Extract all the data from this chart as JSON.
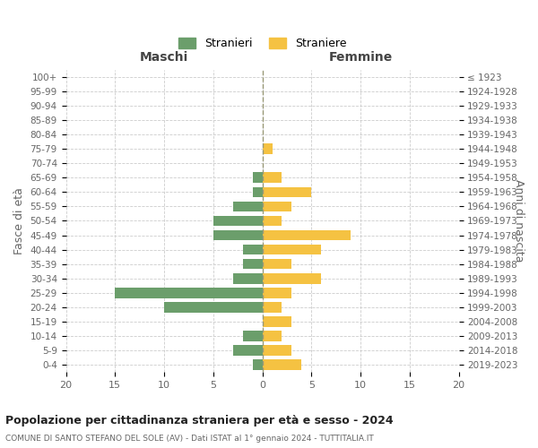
{
  "age_groups": [
    "0-4",
    "5-9",
    "10-14",
    "15-19",
    "20-24",
    "25-29",
    "30-34",
    "35-39",
    "40-44",
    "45-49",
    "50-54",
    "55-59",
    "60-64",
    "65-69",
    "70-74",
    "75-79",
    "80-84",
    "85-89",
    "90-94",
    "95-99",
    "100+"
  ],
  "birth_years": [
    "2019-2023",
    "2014-2018",
    "2009-2013",
    "2004-2008",
    "1999-2003",
    "1994-1998",
    "1989-1993",
    "1984-1988",
    "1979-1983",
    "1974-1978",
    "1969-1973",
    "1964-1968",
    "1959-1963",
    "1954-1958",
    "1949-1953",
    "1944-1948",
    "1939-1943",
    "1934-1938",
    "1929-1933",
    "1924-1928",
    "≤ 1923"
  ],
  "males": [
    1,
    3,
    2,
    0,
    10,
    15,
    3,
    2,
    2,
    5,
    5,
    3,
    1,
    1,
    0,
    0,
    0,
    0,
    0,
    0,
    0
  ],
  "females": [
    4,
    3,
    2,
    3,
    2,
    3,
    6,
    3,
    6,
    9,
    2,
    3,
    5,
    2,
    0,
    1,
    0,
    0,
    0,
    0,
    0
  ],
  "male_color": "#6b9e6b",
  "female_color": "#f5c242",
  "title_main": "Popolazione per cittadinanza straniera per età e sesso - 2024",
  "title_sub": "COMUNE DI SANTO STEFANO DEL SOLE (AV) - Dati ISTAT al 1° gennaio 2024 - TUTTITALIA.IT",
  "legend_male": "Stranieri",
  "legend_female": "Straniere",
  "xlabel_left": "Maschi",
  "xlabel_right": "Femmine",
  "ylabel_left": "Fasce di età",
  "ylabel_right": "Anni di nascita",
  "xlim": 20,
  "background_color": "#ffffff",
  "grid_color": "#cccccc"
}
